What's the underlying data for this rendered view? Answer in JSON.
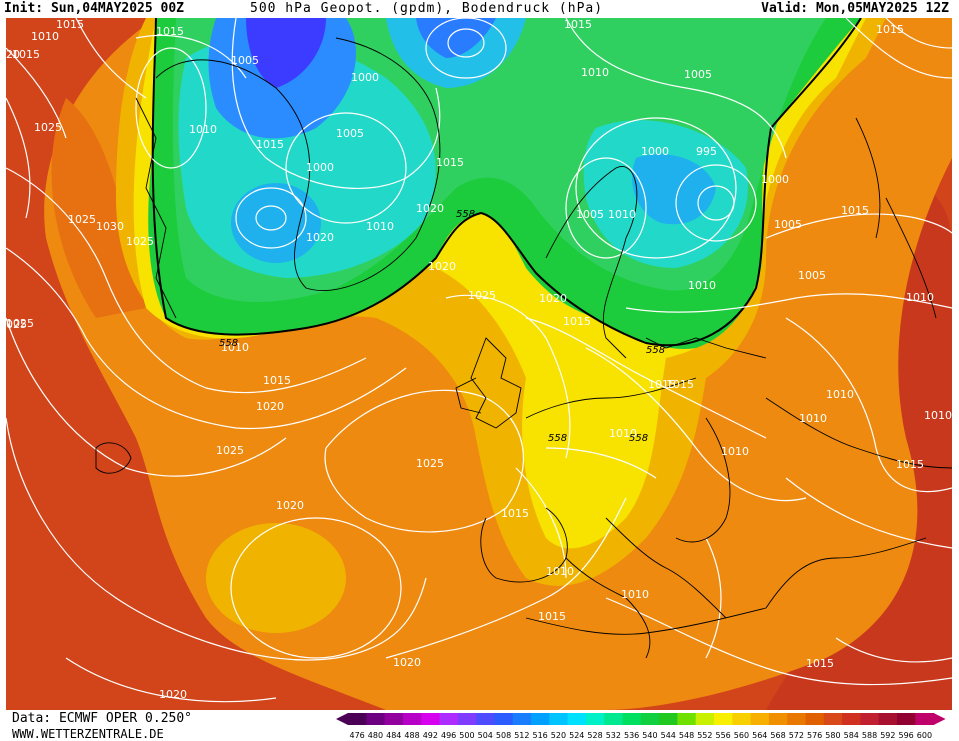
{
  "header": {
    "init": "Init: Sun,04MAY2025 00Z",
    "title": "500 hPa Geopot. (gpdm), Bodendruck (hPa)",
    "valid": "Valid: Mon,05MAY2025 12Z"
  },
  "footer": {
    "data_source": "Data: ECMWF OPER 0.250°",
    "website": "WWW.WETTERZENTRALE.DE"
  },
  "legend": {
    "values": [
      "476",
      "480",
      "484",
      "488",
      "492",
      "496",
      "500",
      "504",
      "508",
      "512",
      "516",
      "520",
      "524",
      "528",
      "532",
      "536",
      "540",
      "544",
      "548",
      "552",
      "556",
      "560",
      "564",
      "568",
      "572",
      "576",
      "580",
      "584",
      "588",
      "592",
      "596",
      "600"
    ],
    "colors": [
      "#4b0055",
      "#6c0080",
      "#92009e",
      "#b600c6",
      "#d600ee",
      "#ae2cff",
      "#7f3cff",
      "#4f4cff",
      "#2a5cff",
      "#1a7cff",
      "#00a0ff",
      "#00c4ff",
      "#00e0ff",
      "#00f0c8",
      "#00e890",
      "#00e060",
      "#10d040",
      "#20c820",
      "#70e000",
      "#c8f000",
      "#f8f000",
      "#f8d000",
      "#f8b000",
      "#f09000",
      "#e87800",
      "#e06000",
      "#d84818",
      "#d03020",
      "#c02030",
      "#a81030",
      "#900030",
      "#c0006a"
    ]
  },
  "pressure_labels": [
    "1015",
    "1010",
    "1015",
    "1005",
    "1000",
    "1010",
    "1015",
    "1005",
    "1015",
    "1020",
    "1025",
    "1020",
    "1010",
    "1030",
    "1025",
    "1000",
    "1010",
    "1005",
    "1015",
    "1005",
    "1010",
    "1000",
    "995",
    "1000",
    "1005",
    "1015",
    "1020",
    "1025",
    "1020",
    "1015",
    "1010",
    "558",
    "1010",
    "1015",
    "1020",
    "1025",
    "1025",
    "1025",
    "1020",
    "1015",
    "1010",
    "1010",
    "1015",
    "1015",
    "1010",
    "1010",
    "1010",
    "1010",
    "1015",
    "558",
    "1010",
    "1005",
    "1015",
    "1010",
    "1015",
    "1015",
    "1020",
    "1020",
    "1025",
    "1015",
    "20",
    "025"
  ],
  "height_labels": [
    "558",
    "558",
    "558",
    "558"
  ],
  "colors": {
    "green_region": "#1ccc3c",
    "cyan_region": "#22d8c8",
    "yellow_region": "#f8e200",
    "orange_region": "#ee8a10",
    "red_region": "#d2441a",
    "land_outline": "#000000",
    "isobar": "#ffffff"
  }
}
